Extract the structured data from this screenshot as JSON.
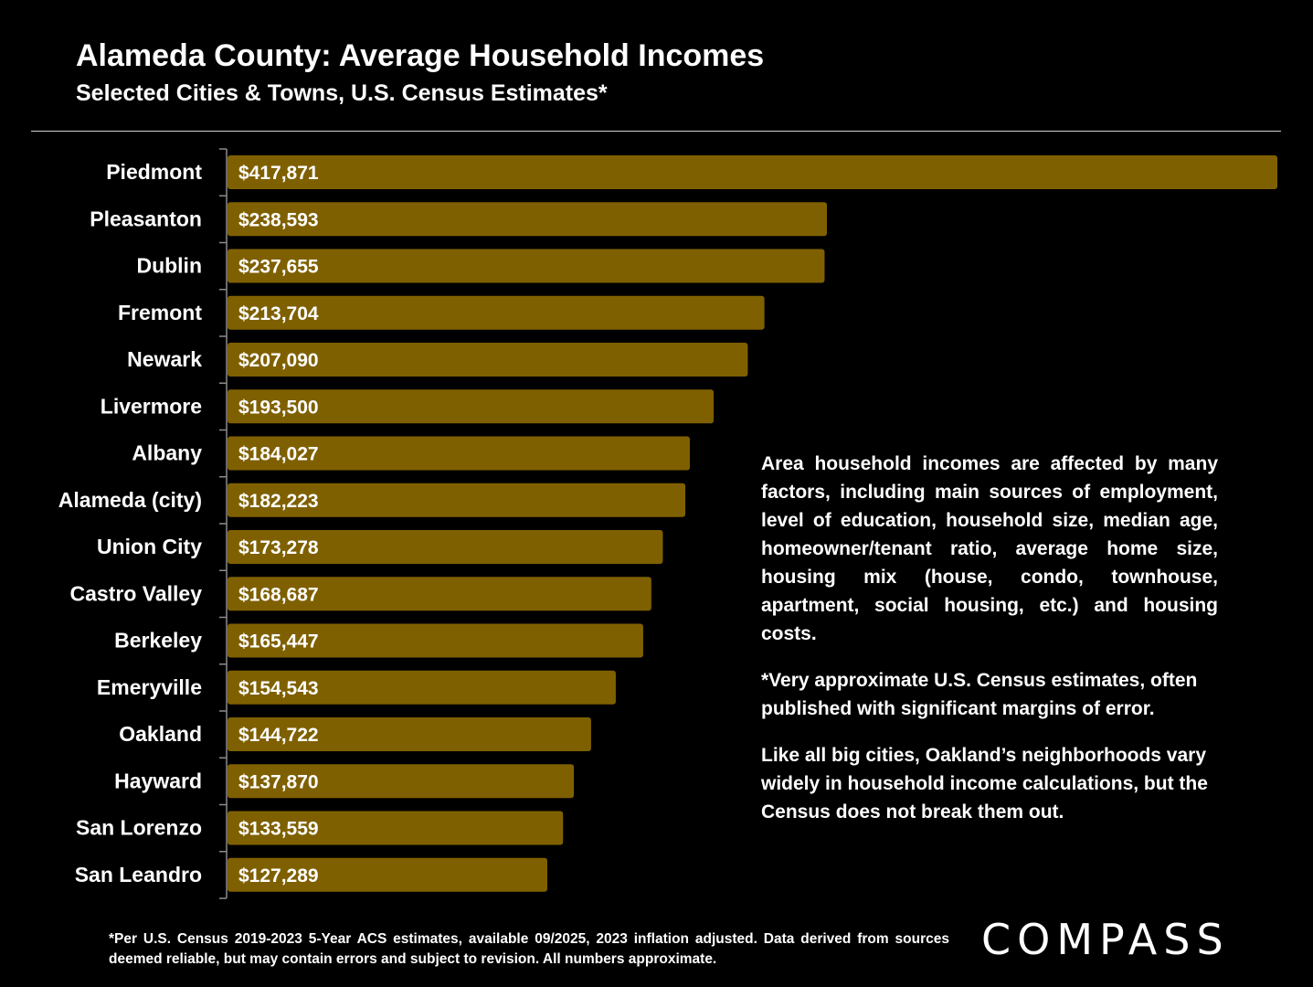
{
  "header": {
    "title": "Alameda County: Average Household Incomes",
    "subtitle": "Selected Cities & Towns, U.S. Census Estimates*"
  },
  "chart_data": {
    "type": "bar",
    "orientation": "horizontal",
    "categories": [
      "Piedmont",
      "Pleasanton",
      "Dublin",
      "Fremont",
      "Newark",
      "Livermore",
      "Albany",
      "Alameda (city)",
      "Union City",
      "Castro Valley",
      "Berkeley",
      "Emeryville",
      "Oakland",
      "Hayward",
      "San Lorenzo",
      "San Leandro"
    ],
    "values": [
      417871,
      238593,
      237655,
      213704,
      207090,
      193500,
      184027,
      182223,
      173278,
      168687,
      165447,
      154543,
      144722,
      137870,
      133559,
      127289
    ],
    "data_labels": [
      "$417,871",
      "$238,593",
      "$237,655",
      "$213,704",
      "$207,090",
      "$193,500",
      "$184,027",
      "$182,223",
      "$173,278",
      "$168,687",
      "$165,447",
      "$154,543",
      "$144,722",
      "$137,870",
      "$133,559",
      "$127,289"
    ],
    "bar_color": "#7f6000",
    "xlim": [
      0,
      417871
    ],
    "grid": false,
    "legend": "none"
  },
  "notes": {
    "p1": "Area household incomes are affected by many factors, including main sources of employment, level of education, household size, median age, homeowner/tenant ratio, average home size, housing mix (house, condo, townhouse, apartment, social housing, etc.) and housing costs.",
    "p2": "*Very approximate U.S. Census estimates, often published with significant margins of error.",
    "p3": "Like all big cities, Oakland’s neighborhoods vary widely in household income calculations, but the Census does not break them out."
  },
  "footnote": "*Per U.S. Census 2019-2023 5-Year ACS estimates, available 09/2025, 2023 inflation adjusted. Data derived from sources deemed reliable, but may contain errors and subject to revision. All numbers approximate.",
  "brand": {
    "logo_text": "COMPASS"
  },
  "colors": {
    "background": "#000000",
    "text": "#ffffff",
    "bar": "#7f6000"
  }
}
